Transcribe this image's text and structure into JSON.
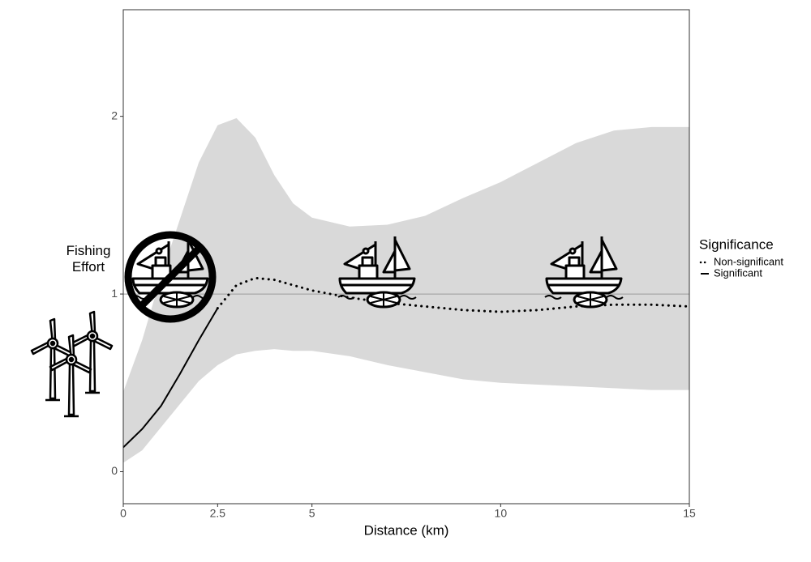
{
  "chart_data": {
    "type": "line",
    "x_label": "Distance (km)",
    "y_label": "Fishing Effort",
    "legend_title": "Significance",
    "x": [
      0,
      0.5,
      1,
      1.5,
      2,
      2.5,
      3,
      3.5,
      4,
      4.5,
      5,
      6,
      7,
      8,
      9,
      10,
      11,
      12,
      13,
      14,
      15
    ],
    "series": [
      {
        "name": "Non-significant",
        "color": "#000000",
        "dash": "dotted",
        "values": [
          null,
          null,
          null,
          null,
          null,
          0.92,
          1.05,
          1.09,
          1.08,
          1.05,
          1.02,
          0.98,
          0.95,
          0.93,
          0.91,
          0.9,
          0.91,
          0.93,
          0.94,
          0.94,
          0.93
        ]
      },
      {
        "name": "Significant",
        "color": "#000000",
        "dash": "solid",
        "values": [
          0.137,
          0.24,
          0.37,
          0.55,
          0.74,
          0.92,
          null,
          null,
          null,
          null,
          null,
          null,
          null,
          null,
          null,
          null,
          null,
          null,
          null,
          null,
          null
        ]
      }
    ],
    "band": {
      "color": "#d9d9d9",
      "lower": [
        0.05,
        0.12,
        0.25,
        0.38,
        0.51,
        0.6,
        0.66,
        0.68,
        0.69,
        0.68,
        0.68,
        0.65,
        0.6,
        0.56,
        0.52,
        0.5,
        0.49,
        0.48,
        0.47,
        0.46,
        0.46
      ],
      "upper": [
        0.45,
        0.74,
        1.1,
        1.42,
        1.74,
        1.95,
        1.99,
        1.88,
        1.67,
        1.51,
        1.43,
        1.38,
        1.39,
        1.44,
        1.54,
        1.63,
        1.74,
        1.85,
        1.92,
        1.94,
        1.94
      ]
    },
    "reference_line": 1,
    "xlim": [
      0,
      15
    ],
    "xticks": [
      0,
      2.5,
      5,
      10,
      15
    ],
    "ylim": [
      -0.18,
      2.6
    ],
    "yticks": [
      0,
      1,
      2
    ],
    "grid": false,
    "legend_position": "right"
  }
}
